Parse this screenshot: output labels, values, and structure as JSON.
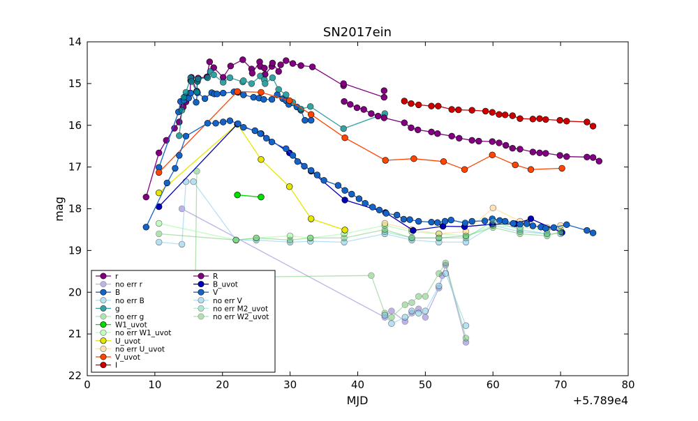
{
  "chart_data": {
    "type": "scatter",
    "title": "SN2017ein",
    "xlabel": "MJD",
    "ylabel": "mag",
    "offset_label": "+5.789e4",
    "xlim": [
      0,
      80
    ],
    "ylim": [
      22,
      14
    ],
    "y_inverted": true,
    "x_ticks": [
      "0",
      "10",
      "20",
      "30",
      "40",
      "50",
      "60",
      "70",
      "80"
    ],
    "y_ticks": [
      "14",
      "15",
      "16",
      "17",
      "18",
      "19",
      "20",
      "21",
      "22"
    ],
    "grid": false,
    "legend_position": "lower-left",
    "series": [
      {
        "name": "r",
        "color": "#800080",
        "alpha": 1,
        "x": [
          8.7,
          10.6,
          11.7,
          12.9,
          13.6,
          14.2,
          14.6,
          15.2,
          15.3,
          15.4,
          16.2,
          16.3,
          16.4,
          17.7,
          18.1,
          18.7,
          20.1,
          21.2,
          23.0,
          24.3,
          24.4,
          25.5,
          25.6,
          26.2,
          26.3,
          27.3,
          27.4,
          28.3,
          28.6,
          29.4,
          30.4,
          31.6,
          33.3,
          37.9,
          37.9,
          43.9,
          43.9
        ],
        "y": [
          17.72,
          16.66,
          16.36,
          16.07,
          15.92,
          15.56,
          15.44,
          15.23,
          14.93,
          14.85,
          15.18,
          14.94,
          14.87,
          14.84,
          14.48,
          14.62,
          14.85,
          14.58,
          14.43,
          14.65,
          14.75,
          14.48,
          14.59,
          14.63,
          14.78,
          14.59,
          14.51,
          14.71,
          14.55,
          14.45,
          14.52,
          14.57,
          14.6,
          15.05,
          15.0,
          15.33,
          15.17
        ]
      },
      {
        "name": "no err r",
        "color": "#6a5acd",
        "alpha": 0.45,
        "x": [
          14.0,
          44.0,
          45.0,
          47.0,
          48.0,
          49.0,
          50.0,
          52.0,
          52.5,
          53.0,
          56.0
        ],
        "y": [
          18.0,
          20.6,
          20.45,
          20.7,
          20.5,
          20.4,
          20.6,
          19.9,
          19.6,
          19.35,
          21.2
        ]
      },
      {
        "name": "B",
        "color": "#1464c8",
        "alpha": 1,
        "x": [
          10.6,
          13.5,
          13.8,
          14.3,
          14.5,
          15.0,
          15.3,
          16.1,
          16.3,
          17.4,
          18.4,
          18.8,
          19.2,
          20.1,
          21.7,
          22.3,
          23.1,
          24.6,
          25.4,
          26.1,
          27.3,
          28.1,
          28.9,
          29.4,
          29.8,
          31.0,
          31.6,
          32.2,
          33.1
        ],
        "y": [
          17.01,
          15.68,
          15.43,
          15.4,
          15.31,
          15.35,
          15.23,
          15.45,
          15.22,
          15.36,
          15.22,
          15.25,
          15.25,
          15.23,
          15.2,
          15.21,
          15.27,
          15.33,
          15.35,
          15.38,
          15.38,
          15.27,
          15.36,
          15.41,
          15.5,
          15.56,
          15.64,
          15.88,
          15.88
        ]
      },
      {
        "name": "no err B",
        "color": "#87ceeb",
        "alpha": 0.6,
        "x": [
          10.6,
          14.0,
          14.6,
          15.7,
          22.0,
          25.0,
          30.0,
          33.0,
          38.0,
          44.0,
          48.0,
          52.0,
          56.0,
          60.0,
          64.0,
          68.0
        ],
        "y": [
          18.8,
          18.85,
          17.35,
          17.35,
          18.75,
          18.75,
          18.8,
          18.78,
          18.8,
          18.6,
          18.75,
          18.8,
          18.8,
          18.4,
          18.55,
          18.6
        ]
      },
      {
        "name": "g",
        "color": "#008b8b",
        "alpha": 0.8,
        "x": [
          13.6,
          14.0,
          14.3,
          14.6,
          15.3,
          15.4,
          16.2,
          16.3,
          16.4,
          17.8,
          18.2,
          18.7,
          20.1,
          21.1,
          23.0,
          23.1,
          24.3,
          25.6,
          26.2,
          26.3,
          27.4,
          28.3,
          29.4,
          30.4,
          31.6,
          33.0,
          37.9,
          44.0
        ],
        "y": [
          16.25,
          15.64,
          15.33,
          15.21,
          14.86,
          14.95,
          15.2,
          14.95,
          14.89,
          14.86,
          14.71,
          14.79,
          14.97,
          14.86,
          14.96,
          14.93,
          15.0,
          14.82,
          14.91,
          15.0,
          14.86,
          15.14,
          15.27,
          15.45,
          15.61,
          15.55,
          16.08,
          15.72
        ]
      },
      {
        "name": "no err g",
        "color": "#55bb55",
        "alpha": 0.45,
        "x": [
          16.2,
          16.0,
          42.0,
          44.0,
          45.0,
          47.0,
          48.0,
          49.0,
          50.0,
          52.0,
          53.0,
          56.0
        ],
        "y": [
          17.1,
          19.65,
          19.6,
          20.5,
          20.6,
          20.3,
          20.25,
          20.1,
          20.1,
          19.55,
          19.3,
          21.1
        ]
      },
      {
        "name": "W1_uvot",
        "color": "#00dd00",
        "alpha": 1,
        "x": [
          22.2,
          25.7
        ],
        "y": [
          17.67,
          17.72
        ]
      },
      {
        "name": "no err W1_uvot",
        "color": "#98fb98",
        "alpha": 0.6,
        "x": [
          10.6,
          22.0,
          25.0,
          30.0,
          33.0,
          38.0,
          44.0,
          48.0,
          52.0,
          56.0,
          60.0,
          64.0,
          68.0,
          70.0
        ],
        "y": [
          18.35,
          18.75,
          18.7,
          18.65,
          18.7,
          18.6,
          18.4,
          18.55,
          18.6,
          18.65,
          18.4,
          18.45,
          18.5,
          18.5
        ]
      },
      {
        "name": "U_uvot",
        "color": "#e6e600",
        "alpha": 1,
        "x": [
          10.6,
          22.2,
          25.7,
          29.9,
          33.1,
          38.1
        ],
        "y": [
          17.62,
          15.97,
          16.82,
          17.47,
          18.24,
          18.51
        ]
      },
      {
        "name": "no err U_uvot",
        "color": "#ffd27f",
        "alpha": 0.6,
        "x": [
          44.0,
          48.0,
          52.0,
          56.0,
          60.0,
          64.0,
          68.0,
          70.0
        ],
        "y": [
          18.35,
          18.5,
          18.6,
          18.55,
          17.98,
          18.3,
          18.45,
          18.4
        ]
      },
      {
        "name": "V_uvot",
        "color": "#ff4500",
        "alpha": 1,
        "x": [
          10.6,
          22.2,
          25.7,
          29.9,
          33.1,
          38.1,
          44.1,
          48.3,
          52.7,
          55.8,
          59.9,
          63.3,
          65.6,
          70.2
        ],
        "y": [
          17.13,
          15.19,
          15.21,
          15.41,
          15.74,
          16.3,
          16.84,
          16.8,
          16.87,
          17.06,
          16.71,
          16.95,
          17.06,
          17.03
        ]
      },
      {
        "name": "I",
        "color": "#cc0000",
        "alpha": 1,
        "x": [
          46.9,
          47.9,
          49.0,
          50.9,
          51.9,
          53.9,
          54.9,
          56.9,
          58.9,
          59.9,
          60.9,
          61.8,
          62.9,
          64.0,
          65.9,
          66.9,
          67.8,
          69.9,
          70.9,
          73.9,
          74.8
        ],
        "y": [
          15.42,
          15.48,
          15.51,
          15.54,
          15.54,
          15.62,
          15.63,
          15.64,
          15.66,
          15.69,
          15.74,
          15.75,
          15.77,
          15.84,
          15.85,
          15.84,
          15.86,
          15.88,
          15.9,
          15.92,
          16.02
        ]
      },
      {
        "name": "R",
        "color": "#800080",
        "alpha": 1,
        "x": [
          38.0,
          38.9,
          39.9,
          40.9,
          42.0,
          43.0,
          43.9,
          46.9,
          47.9,
          48.9,
          50.9,
          51.8,
          53.9,
          55.0,
          56.9,
          57.9,
          59.9,
          60.9,
          61.9,
          62.9,
          64.0,
          65.9,
          66.9,
          67.8,
          69.9,
          70.9,
          73.9,
          74.8,
          75.7
        ],
        "y": [
          15.43,
          15.5,
          15.58,
          15.62,
          15.72,
          15.78,
          15.82,
          15.94,
          16.06,
          16.11,
          16.16,
          16.2,
          16.26,
          16.31,
          16.36,
          16.38,
          16.39,
          16.42,
          16.48,
          16.55,
          16.57,
          16.64,
          16.66,
          16.67,
          16.72,
          16.75,
          16.76,
          16.77,
          16.86
        ]
      },
      {
        "name": "B_uvot",
        "color": "#0000b8",
        "alpha": 1,
        "x": [
          10.6,
          22.2,
          25.7,
          29.9,
          33.1,
          38.1,
          44.1,
          48.2,
          52.6,
          55.8,
          59.9,
          63.3,
          65.6,
          70.2
        ],
        "y": [
          17.95,
          15.97,
          16.2,
          16.66,
          17.1,
          17.79,
          18.09,
          18.52,
          18.42,
          18.43,
          18.37,
          18.36,
          18.24,
          18.57
        ]
      },
      {
        "name": "V",
        "color": "#1464c8",
        "alpha": 1,
        "x": [
          8.7,
          11.8,
          13.0,
          13.6,
          14.6,
          17.8,
          19.0,
          20.1,
          21.1,
          22.3,
          23.1,
          24.8,
          25.6,
          26.5,
          27.3,
          29.4,
          30.4,
          31.1,
          32.1,
          33.1,
          34.0,
          35.0,
          37.1,
          38.1,
          39.1,
          40.2,
          41.1,
          42.2,
          43.2,
          44.2,
          45.8,
          46.8,
          47.7,
          49.0,
          50.9,
          51.8,
          52.9,
          53.8,
          55.9,
          56.9,
          58.8,
          59.9,
          61.0,
          61.8,
          63.0,
          64.0,
          65.0,
          65.9,
          67.1,
          67.8,
          69.0,
          70.9,
          73.9,
          74.8
        ],
        "y": [
          18.44,
          17.38,
          17.03,
          16.72,
          16.26,
          15.95,
          15.95,
          15.92,
          15.89,
          15.96,
          16.05,
          16.13,
          16.2,
          16.31,
          16.4,
          16.56,
          16.72,
          16.87,
          16.98,
          17.08,
          17.19,
          17.32,
          17.44,
          17.56,
          17.65,
          17.76,
          17.87,
          17.96,
          18.03,
          18.11,
          18.15,
          18.25,
          18.26,
          18.3,
          18.32,
          18.33,
          18.3,
          18.27,
          18.34,
          18.3,
          18.29,
          18.24,
          18.28,
          18.3,
          18.35,
          18.37,
          18.36,
          18.41,
          18.44,
          18.47,
          18.45,
          18.38,
          18.52,
          18.58
        ]
      },
      {
        "name": "no err V",
        "color": "#87ceeb",
        "alpha": 0.6,
        "x": [
          44.0,
          45.0,
          47.0,
          48.0,
          49.0,
          50.0,
          52.0,
          53.0,
          56.0
        ],
        "y": [
          20.55,
          20.75,
          20.6,
          20.45,
          20.5,
          20.45,
          19.85,
          19.55,
          20.8
        ]
      },
      {
        "name": "no err M2_uvot",
        "color": "#66cdaa",
        "alpha": 0.5,
        "x": [
          44.0,
          48.0,
          52.0,
          56.0,
          60.0,
          64.0,
          68.0,
          70.0
        ],
        "y": [
          18.55,
          18.7,
          18.7,
          18.7,
          18.3,
          18.5,
          18.6,
          18.6
        ]
      },
      {
        "name": "no err W2_uvot",
        "color": "#55bb55",
        "alpha": 0.45,
        "x": [
          10.6,
          22.0,
          25.0,
          30.0,
          33.0,
          38.0,
          44.0,
          48.0,
          52.0,
          56.0,
          60.0,
          64.0,
          68.0,
          70.0
        ],
        "y": [
          18.6,
          18.75,
          18.7,
          18.75,
          18.7,
          18.7,
          18.5,
          18.7,
          18.7,
          18.65,
          18.45,
          18.6,
          18.65,
          18.55
        ]
      }
    ]
  }
}
